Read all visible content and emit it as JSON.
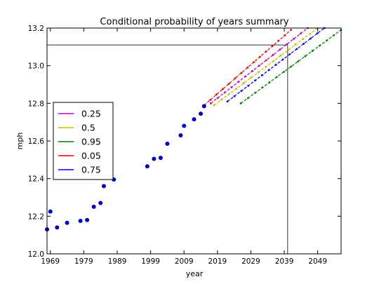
{
  "chart_data": {
    "type": "scatter",
    "title": "Conditional probability of years summary",
    "xlabel": "year",
    "ylabel": "mph",
    "xlim": [
      1968,
      2056
    ],
    "ylim": [
      12.0,
      13.2
    ],
    "xticks": [
      1969,
      1979,
      1989,
      1999,
      2009,
      2019,
      2029,
      2039,
      2049
    ],
    "yticks": [
      12.0,
      12.2,
      12.4,
      12.6,
      12.8,
      13.0,
      13.2
    ],
    "xtick_labels": [
      "1969",
      "1979",
      "1989",
      "1999",
      "2009",
      "2019",
      "2029",
      "2039",
      "2049"
    ],
    "ytick_labels": [
      "12.0",
      "12.2",
      "12.4",
      "12.6",
      "12.8",
      "13.0",
      "13.2"
    ],
    "grid": false,
    "legend_position": "left",
    "observed": {
      "color": "#0000cc",
      "points": [
        [
          1968,
          12.13
        ],
        [
          1969,
          12.225
        ],
        [
          1971,
          12.14
        ],
        [
          1974,
          12.165
        ],
        [
          1978,
          12.175
        ],
        [
          1980,
          12.18
        ],
        [
          1982,
          12.25
        ],
        [
          1984,
          12.27
        ],
        [
          1985,
          12.36
        ],
        [
          1988,
          12.395
        ],
        [
          1998,
          12.465
        ],
        [
          2000,
          12.505
        ],
        [
          2002,
          12.51
        ],
        [
          2004,
          12.585
        ],
        [
          2008,
          12.63
        ],
        [
          2009,
          12.68
        ],
        [
          2012,
          12.715
        ],
        [
          2014,
          12.745
        ],
        [
          2015,
          12.785
        ]
      ]
    },
    "reference_lines": {
      "x": 2040,
      "y": 13.11,
      "color": "#333333"
    },
    "series": [
      {
        "name": "0.25",
        "color": "#c000c0",
        "x_start": 2017,
        "x_end": 2046,
        "y_start": 12.8,
        "y_end": 13.2
      },
      {
        "name": "0.5",
        "color": "#bfbf00",
        "x_start": 2018,
        "x_end": 2049,
        "y_start": 12.79,
        "y_end": 13.2
      },
      {
        "name": "0.95",
        "color": "#008000",
        "x_start": 2026,
        "x_end": 2056,
        "y_start": 12.8,
        "y_end": 13.19
      },
      {
        "name": "0.05",
        "color": "#ff0000",
        "x_start": 2015,
        "x_end": 2041,
        "y_start": 12.79,
        "y_end": 13.19
      },
      {
        "name": "0.75",
        "color": "#0000ff",
        "x_start": 2022,
        "x_end": 2051,
        "y_start": 12.81,
        "y_end": 13.2
      }
    ]
  }
}
